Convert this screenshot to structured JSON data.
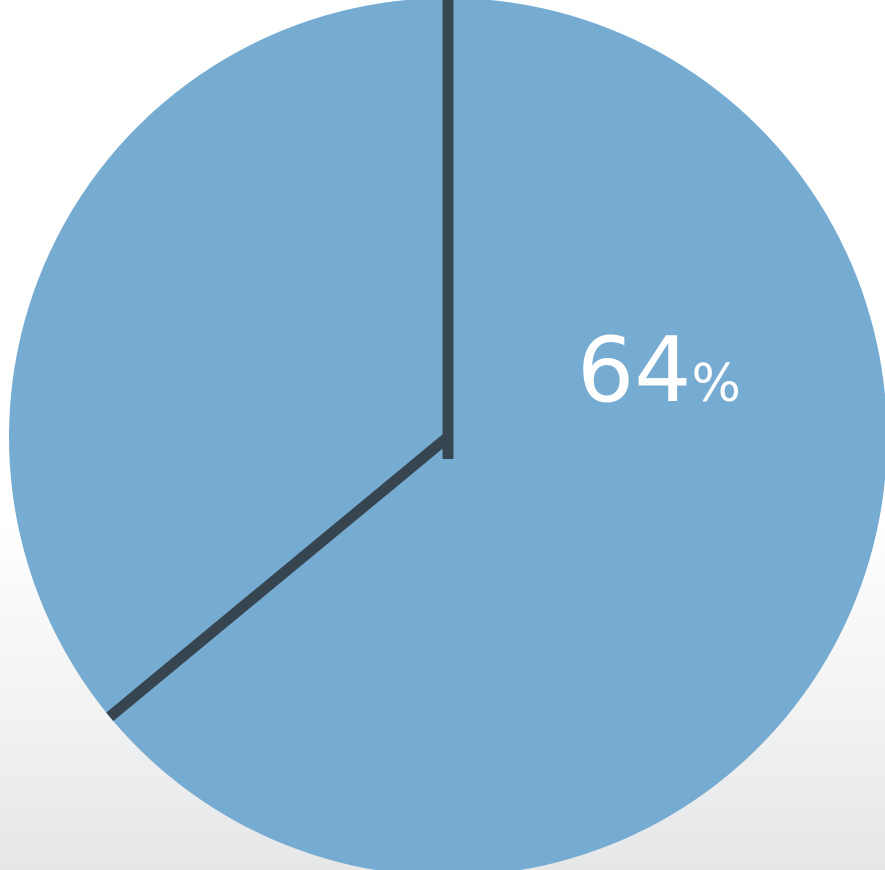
{
  "chart_data": {
    "type": "pie",
    "slices": [
      {
        "value": 64,
        "label_number": "64",
        "label_unit": "%",
        "color": "#76abd2"
      },
      {
        "value": 36,
        "color": "#76abd2"
      }
    ],
    "start_angle_deg": 0,
    "direction": "clockwise",
    "divider_color": "#36454f"
  }
}
